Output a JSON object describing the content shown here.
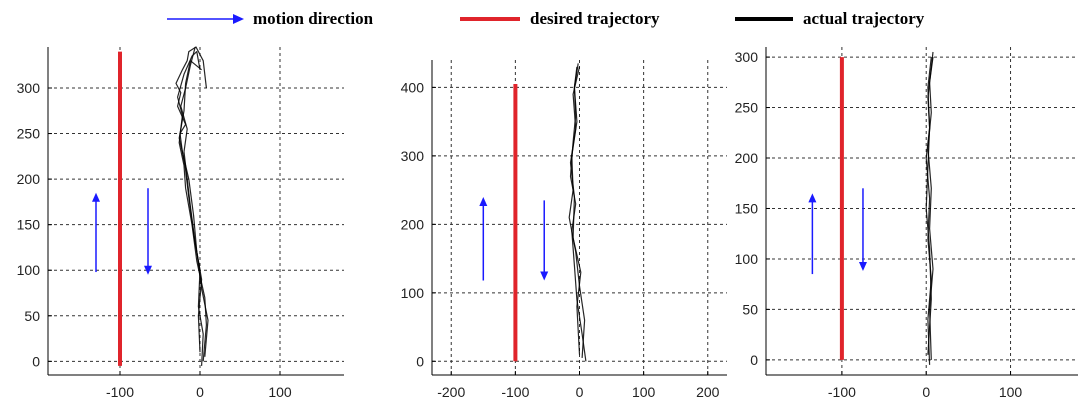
{
  "legend": {
    "motion_label": "motion direction",
    "desired_label": "desired trajectory",
    "actual_label": "actual trajectory",
    "motion_color": "#1a1aff",
    "desired_color": "#e0242b",
    "actual_color": "#000000"
  },
  "chart_data": [
    {
      "type": "line",
      "title": "",
      "xlabel": "",
      "ylabel": "",
      "xlim": [
        -190,
        180
      ],
      "ylim": [
        -15,
        345
      ],
      "xticks": [
        -100,
        0,
        100
      ],
      "yticks": [
        0,
        50,
        100,
        150,
        200,
        250,
        300
      ],
      "grid": true,
      "series": [
        {
          "role": "desired",
          "x": [
            -100,
            -100
          ],
          "y": [
            -5,
            340
          ]
        },
        {
          "role": "actual",
          "x": [
            2,
            4,
            -2,
            0,
            -8,
            -14,
            -18,
            -22,
            -25,
            -18,
            -28,
            -24,
            -30,
            -22,
            -16,
            -14,
            -5,
            4,
            8
          ],
          "y": [
            -5,
            30,
            60,
            100,
            140,
            180,
            210,
            230,
            250,
            260,
            280,
            295,
            305,
            320,
            330,
            340,
            345,
            330,
            300
          ]
        },
        {
          "role": "actual",
          "x": [
            4,
            8,
            6,
            -4,
            -10,
            -18,
            -20,
            -26,
            -22,
            -28,
            -20,
            -10,
            -4,
            0
          ],
          "y": [
            0,
            40,
            70,
            110,
            150,
            190,
            215,
            240,
            270,
            290,
            315,
            335,
            340,
            320
          ]
        },
        {
          "role": "actual",
          "x": [
            0,
            -2,
            2,
            -6,
            -12,
            -16,
            -20,
            -16,
            -24,
            -18,
            -12,
            -6
          ],
          "y": [
            10,
            50,
            90,
            130,
            170,
            200,
            230,
            255,
            280,
            300,
            325,
            345
          ]
        },
        {
          "role": "actual",
          "x": [
            6,
            10,
            2,
            -4,
            -8,
            -14,
            -26,
            -20,
            -18,
            -12,
            2
          ],
          "y": [
            5,
            45,
            80,
            120,
            160,
            200,
            245,
            275,
            305,
            330,
            320
          ]
        }
      ],
      "arrows": [
        {
          "direction": "up",
          "x": -130,
          "y_from": 98,
          "y_to": 185
        },
        {
          "direction": "down",
          "x": -65,
          "y_from": 190,
          "y_to": 95
        }
      ]
    },
    {
      "type": "line",
      "title": "",
      "xlabel": "",
      "ylabel": "",
      "xlim": [
        -230,
        230
      ],
      "ylim": [
        -20,
        440
      ],
      "xticks": [
        -200,
        -100,
        0,
        100,
        200
      ],
      "yticks": [
        0,
        100,
        200,
        300,
        400
      ],
      "grid": true,
      "series": [
        {
          "role": "desired",
          "x": [
            -100,
            -100
          ],
          "y": [
            0,
            405
          ]
        },
        {
          "role": "actual",
          "x": [
            10,
            4,
            -4,
            -8,
            -12,
            -6,
            -14,
            -10,
            -6,
            -8,
            -4
          ],
          "y": [
            0,
            40,
            90,
            140,
            190,
            230,
            270,
            320,
            360,
            400,
            430
          ]
        },
        {
          "role": "actual",
          "x": [
            4,
            8,
            0,
            -6,
            -16,
            -10,
            -12,
            -4,
            -8,
            -2
          ],
          "y": [
            5,
            60,
            110,
            160,
            210,
            250,
            300,
            350,
            400,
            435
          ]
        },
        {
          "role": "actual",
          "x": [
            0,
            -4,
            2,
            -10,
            -8,
            -14,
            -6,
            -10,
            0
          ],
          "y": [
            10,
            80,
            130,
            180,
            240,
            290,
            340,
            390,
            430
          ]
        }
      ],
      "arrows": [
        {
          "direction": "up",
          "x": -150,
          "y_from": 118,
          "y_to": 240
        },
        {
          "direction": "down",
          "x": -55,
          "y_from": 235,
          "y_to": 118
        }
      ]
    },
    {
      "type": "line",
      "title": "",
      "xlabel": "",
      "ylabel": "",
      "xlim": [
        -190,
        180
      ],
      "ylim": [
        -15,
        310
      ],
      "xticks": [
        -100,
        0,
        100
      ],
      "yticks": [
        0,
        50,
        100,
        150,
        200,
        250,
        300
      ],
      "grid": true,
      "series": [
        {
          "role": "desired",
          "x": [
            -100,
            -100
          ],
          "y": [
            0,
            300
          ]
        },
        {
          "role": "actual",
          "x": [
            4,
            2,
            6,
            2,
            4,
            0,
            4,
            2,
            6,
            8
          ],
          "y": [
            -5,
            40,
            80,
            120,
            160,
            200,
            230,
            260,
            290,
            305
          ]
        },
        {
          "role": "actual",
          "x": [
            6,
            4,
            8,
            4,
            6,
            2,
            6,
            4,
            8
          ],
          "y": [
            0,
            50,
            90,
            130,
            170,
            210,
            245,
            275,
            300
          ]
        },
        {
          "role": "actual",
          "x": [
            2,
            6,
            4,
            0,
            2,
            4,
            2,
            6
          ],
          "y": [
            5,
            60,
            110,
            150,
            190,
            230,
            270,
            300
          ]
        }
      ],
      "arrows": [
        {
          "direction": "up",
          "x": -135,
          "y_from": 85,
          "y_to": 165
        },
        {
          "direction": "down",
          "x": -75,
          "y_from": 170,
          "y_to": 88
        }
      ]
    }
  ]
}
